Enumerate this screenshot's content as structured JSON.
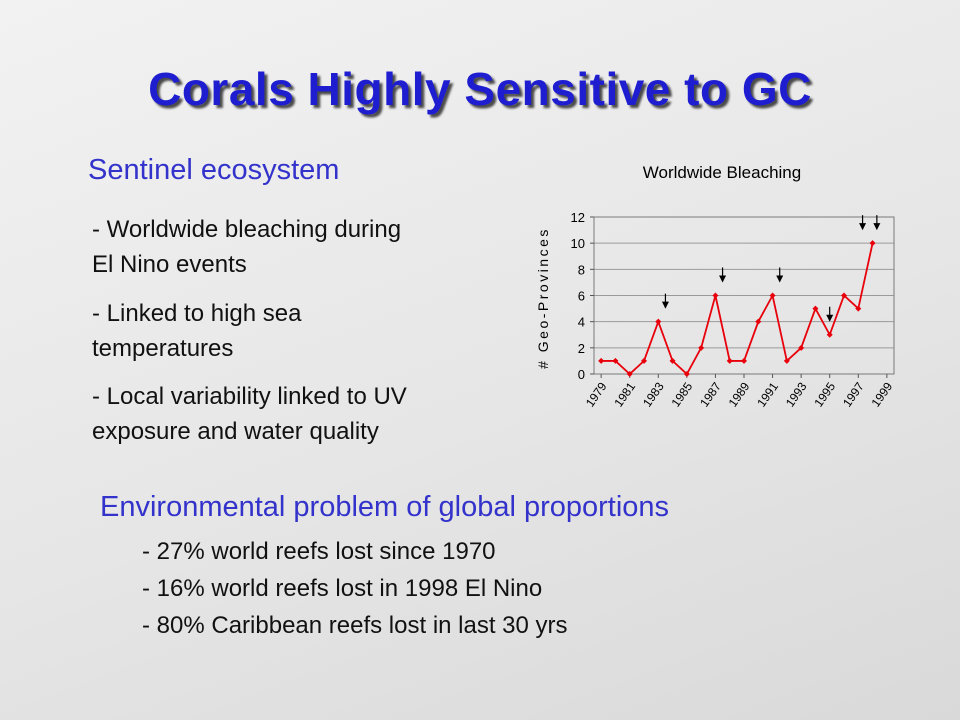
{
  "slide": {
    "title": "Corals Highly Sensitive to GC",
    "section1": {
      "heading": "Sentinel ecosystem",
      "bullets": [
        {
          "line1": "- Worldwide bleaching during",
          "line2": "El Nino events"
        },
        {
          "line1": "- Linked to high sea",
          "line2": "temperatures"
        },
        {
          "line1": "- Local variability linked to UV",
          "line2": "exposure and water quality"
        }
      ]
    },
    "section2": {
      "heading": "Environmental problem of global proportions",
      "items": [
        "-  27% world reefs lost since 1970",
        "-  16% world reefs lost in 1998 El Nino",
        "-  80% Caribbean reefs lost in last 30 yrs"
      ]
    }
  },
  "chart_data": {
    "type": "line",
    "title": "Worldwide Bleaching",
    "ylabel": "# Geo-Provinces",
    "xlabel": "",
    "ylim": [
      0,
      12
    ],
    "yticks": [
      0,
      2,
      4,
      6,
      8,
      10,
      12
    ],
    "x": [
      1979,
      1980,
      1981,
      1982,
      1983,
      1984,
      1985,
      1986,
      1987,
      1988,
      1989,
      1990,
      1991,
      1992,
      1993,
      1994,
      1995,
      1996,
      1997,
      1998,
      1999
    ],
    "xtick_labels": [
      "1979",
      "1981",
      "1983",
      "1985",
      "1987",
      "1989",
      "1991",
      "1993",
      "1995",
      "1997",
      "1999"
    ],
    "values": [
      1,
      1,
      0,
      1,
      4,
      1,
      0,
      2,
      6,
      1,
      1,
      4,
      6,
      1,
      2,
      5,
      3,
      6,
      5,
      10,
      null
    ],
    "event_arrows": [
      1983.5,
      1987.5,
      1991.5,
      1995.0,
      1997.3,
      1998.3
    ],
    "series_color": "#e8000b",
    "grid": "horizontal"
  }
}
